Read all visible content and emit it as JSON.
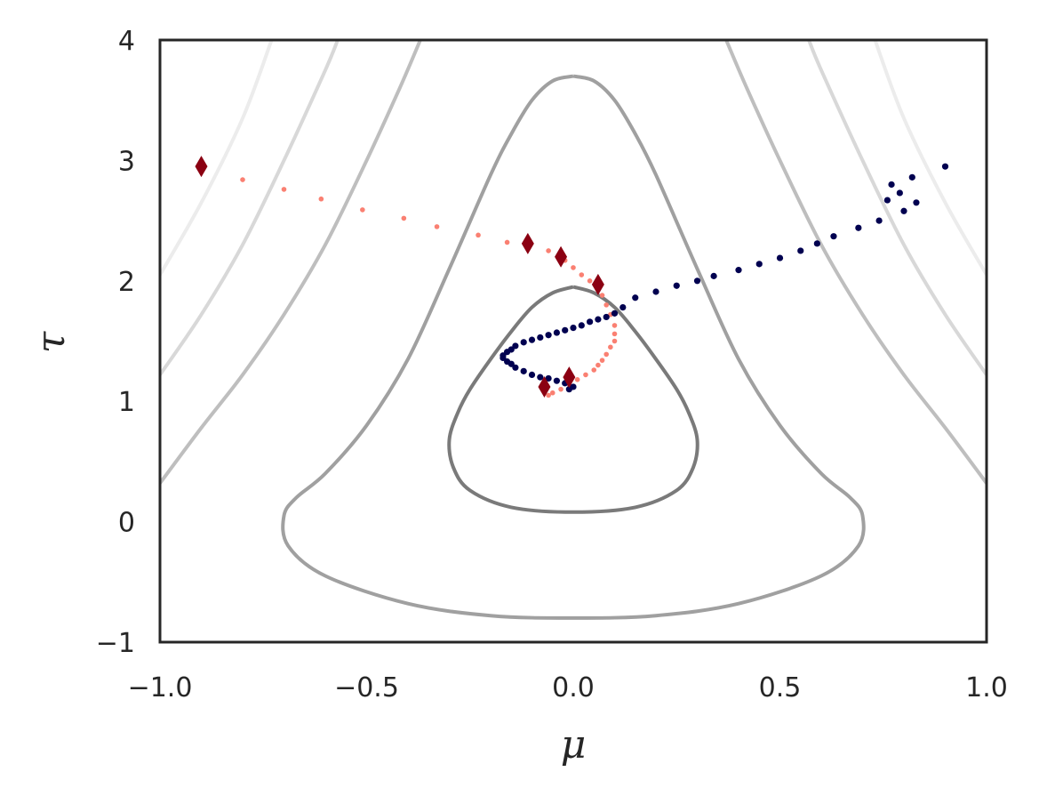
{
  "chart_data": {
    "type": "scatter",
    "xlabel": "μ",
    "ylabel": "τ",
    "xlim": [
      -1.0,
      1.0
    ],
    "ylim": [
      -1,
      4
    ],
    "x_ticks": [
      -1.0,
      -0.5,
      0.0,
      0.5,
      1.0
    ],
    "x_tick_labels": [
      "−1.0",
      "−0.5",
      "0.0",
      "0.5",
      "1.0"
    ],
    "y_ticks": [
      -1,
      0,
      1,
      2,
      3,
      4
    ],
    "y_tick_labels": [
      "−1",
      "0",
      "1",
      "2",
      "3",
      "4"
    ],
    "grid": false,
    "contours": {
      "description": "Level curves of a potential centered at (0, ~0.8)",
      "curves": [
        {
          "level": 1,
          "color": "#7a7a7a",
          "points": [
            [
              0.0,
              1.95
            ],
            [
              0.05,
              1.9
            ],
            [
              0.1,
              1.78
            ],
            [
              0.15,
              1.58
            ],
            [
              0.2,
              1.35
            ],
            [
              0.25,
              1.1
            ],
            [
              0.28,
              0.9
            ],
            [
              0.3,
              0.68
            ],
            [
              0.29,
              0.45
            ],
            [
              0.25,
              0.26
            ],
            [
              0.15,
              0.12
            ],
            [
              0.0,
              0.08
            ],
            [
              -0.15,
              0.12
            ],
            [
              -0.25,
              0.26
            ],
            [
              -0.29,
              0.45
            ],
            [
              -0.3,
              0.68
            ],
            [
              -0.28,
              0.9
            ],
            [
              -0.25,
              1.1
            ],
            [
              -0.2,
              1.35
            ],
            [
              -0.15,
              1.58
            ],
            [
              -0.1,
              1.78
            ],
            [
              -0.05,
              1.9
            ],
            [
              0.0,
              1.95
            ]
          ]
        },
        {
          "level": 2,
          "color": "#a0a0a0",
          "points": [
            [
              0.0,
              3.7
            ],
            [
              0.05,
              3.66
            ],
            [
              0.1,
              3.5
            ],
            [
              0.15,
              3.22
            ],
            [
              0.2,
              2.88
            ],
            [
              0.3,
              2.1
            ],
            [
              0.4,
              1.35
            ],
            [
              0.5,
              0.8
            ],
            [
              0.6,
              0.4
            ],
            [
              0.67,
              0.2
            ],
            [
              0.7,
              0.05
            ],
            [
              0.69,
              -0.2
            ],
            [
              0.6,
              -0.45
            ],
            [
              0.4,
              -0.68
            ],
            [
              0.2,
              -0.78
            ],
            [
              0.0,
              -0.8
            ],
            [
              -0.2,
              -0.78
            ],
            [
              -0.4,
              -0.68
            ],
            [
              -0.6,
              -0.45
            ],
            [
              -0.69,
              -0.2
            ],
            [
              -0.7,
              0.05
            ],
            [
              -0.67,
              0.2
            ],
            [
              -0.6,
              0.4
            ],
            [
              -0.5,
              0.8
            ],
            [
              -0.4,
              1.35
            ],
            [
              -0.3,
              2.1
            ],
            [
              -0.2,
              2.88
            ],
            [
              -0.15,
              3.22
            ],
            [
              -0.1,
              3.5
            ],
            [
              -0.05,
              3.66
            ],
            [
              0.0,
              3.7
            ]
          ]
        },
        {
          "level": 3,
          "color": "#bebebe",
          "points": [
            [
              -1.0,
              0.32
            ],
            [
              -0.9,
              0.78
            ],
            [
              -0.8,
              1.22
            ],
            [
              -0.7,
              1.72
            ],
            [
              -0.6,
              2.3
            ],
            [
              -0.5,
              3.0
            ],
            [
              -0.42,
              3.6
            ],
            [
              -0.37,
              4.0
            ]
          ]
        },
        {
          "level": 3,
          "color": "#bebebe",
          "points": [
            [
              1.0,
              0.32
            ],
            [
              0.9,
              0.78
            ],
            [
              0.8,
              1.22
            ],
            [
              0.7,
              1.72
            ],
            [
              0.6,
              2.3
            ],
            [
              0.5,
              3.0
            ],
            [
              0.42,
              3.6
            ],
            [
              0.37,
              4.0
            ]
          ]
        },
        {
          "level": 4,
          "color": "#d8d8d8",
          "points": [
            [
              -1.0,
              1.22
            ],
            [
              -0.9,
              1.72
            ],
            [
              -0.8,
              2.3
            ],
            [
              -0.7,
              3.0
            ],
            [
              -0.6,
              3.75
            ],
            [
              -0.57,
              4.0
            ]
          ]
        },
        {
          "level": 4,
          "color": "#d8d8d8",
          "points": [
            [
              1.0,
              1.22
            ],
            [
              0.9,
              1.72
            ],
            [
              0.8,
              2.3
            ],
            [
              0.7,
              3.0
            ],
            [
              0.6,
              3.75
            ],
            [
              0.57,
              4.0
            ]
          ]
        },
        {
          "level": 5,
          "color": "#ececec",
          "points": [
            [
              -1.0,
              2.05
            ],
            [
              -0.9,
              2.65
            ],
            [
              -0.8,
              3.35
            ],
            [
              -0.73,
              4.0
            ]
          ]
        },
        {
          "level": 5,
          "color": "#ececec",
          "points": [
            [
              1.0,
              2.05
            ],
            [
              0.9,
              2.65
            ],
            [
              0.8,
              3.35
            ],
            [
              0.73,
              4.0
            ]
          ]
        }
      ]
    },
    "series": [
      {
        "name": "salmon trajectory",
        "marker": "dot",
        "color": "#fa8072",
        "points": [
          [
            -0.8,
            2.84
          ],
          [
            -0.7,
            2.76
          ],
          [
            -0.61,
            2.68
          ],
          [
            -0.51,
            2.59
          ],
          [
            -0.41,
            2.52
          ],
          [
            -0.33,
            2.45
          ],
          [
            -0.23,
            2.38
          ],
          [
            -0.16,
            2.32
          ],
          [
            -0.06,
            2.25
          ],
          [
            -0.02,
            2.17
          ],
          [
            0.0,
            2.11
          ],
          [
            0.02,
            2.05
          ],
          [
            0.04,
            2.0
          ],
          [
            0.06,
            1.94
          ],
          [
            0.07,
            1.88
          ],
          [
            0.08,
            1.8
          ],
          [
            0.09,
            1.72
          ],
          [
            0.1,
            1.63
          ],
          [
            0.1,
            1.56
          ],
          [
            0.1,
            1.5
          ],
          [
            0.09,
            1.45
          ],
          [
            0.08,
            1.39
          ],
          [
            0.07,
            1.34
          ],
          [
            0.06,
            1.3
          ],
          [
            0.05,
            1.26
          ],
          [
            0.03,
            1.22
          ],
          [
            0.01,
            1.18
          ],
          [
            -0.01,
            1.14
          ],
          [
            -0.03,
            1.1
          ],
          [
            -0.05,
            1.07
          ],
          [
            -0.06,
            1.05
          ]
        ]
      },
      {
        "name": "navy trajectory",
        "marker": "dot",
        "color": "#000050",
        "points": [
          [
            0.9,
            2.95
          ],
          [
            0.82,
            2.86
          ],
          [
            0.77,
            2.8
          ],
          [
            0.79,
            2.73
          ],
          [
            0.76,
            2.67
          ],
          [
            0.83,
            2.65
          ],
          [
            0.8,
            2.58
          ],
          [
            0.74,
            2.5
          ],
          [
            0.69,
            2.44
          ],
          [
            0.63,
            2.37
          ],
          [
            0.59,
            2.31
          ],
          [
            0.55,
            2.25
          ],
          [
            0.5,
            2.19
          ],
          [
            0.45,
            2.14
          ],
          [
            0.4,
            2.09
          ],
          [
            0.34,
            2.04
          ],
          [
            0.3,
            2.0
          ],
          [
            0.25,
            1.96
          ],
          [
            0.2,
            1.91
          ],
          [
            0.15,
            1.86
          ],
          [
            0.12,
            1.78
          ],
          [
            0.1,
            1.73
          ],
          [
            0.08,
            1.7
          ],
          [
            0.06,
            1.68
          ],
          [
            0.04,
            1.66
          ],
          [
            0.02,
            1.63
          ],
          [
            0.0,
            1.61
          ],
          [
            -0.02,
            1.59
          ],
          [
            -0.04,
            1.57
          ],
          [
            -0.06,
            1.55
          ],
          [
            -0.08,
            1.53
          ],
          [
            -0.1,
            1.51
          ],
          [
            -0.12,
            1.49
          ],
          [
            -0.14,
            1.46
          ],
          [
            -0.15,
            1.43
          ],
          [
            -0.16,
            1.41
          ],
          [
            -0.17,
            1.38
          ],
          [
            -0.17,
            1.36
          ],
          [
            -0.16,
            1.33
          ],
          [
            -0.15,
            1.31
          ],
          [
            -0.14,
            1.28
          ],
          [
            -0.12,
            1.25
          ],
          [
            -0.1,
            1.22
          ],
          [
            -0.08,
            1.2
          ],
          [
            -0.06,
            1.19
          ],
          [
            -0.04,
            1.17
          ],
          [
            -0.02,
            1.15
          ],
          [
            0.0,
            1.12
          ],
          [
            -0.01,
            1.1
          ]
        ]
      },
      {
        "name": "diamond markers",
        "marker": "diamond",
        "color": "#8b0012",
        "points": [
          [
            -0.9,
            2.95
          ],
          [
            -0.11,
            2.31
          ],
          [
            -0.03,
            2.2
          ],
          [
            0.06,
            1.97
          ],
          [
            -0.01,
            1.2
          ],
          [
            -0.07,
            1.12
          ]
        ]
      }
    ]
  }
}
